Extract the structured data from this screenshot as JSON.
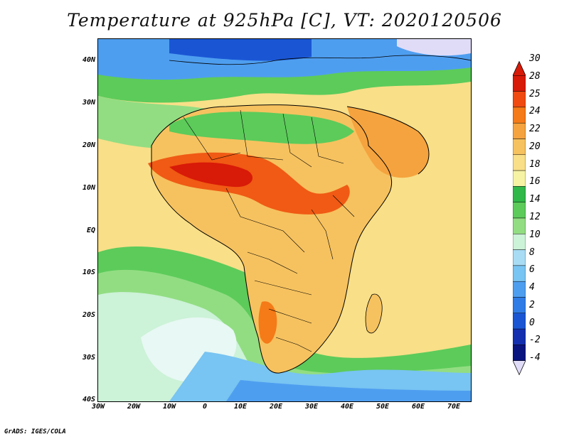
{
  "title": "Temperature at 925hPa [C], VT: 2020120506",
  "credit": "GrADS: IGES/COLA",
  "map": {
    "region": "Africa",
    "lat_ticks": [
      "40N",
      "30N",
      "20N",
      "10N",
      "EQ",
      "10S",
      "20S",
      "30S",
      "40S"
    ],
    "lon_ticks": [
      "30W",
      "20W",
      "10W",
      "0",
      "10E",
      "20E",
      "30E",
      "40E",
      "50E",
      "60E",
      "70E"
    ],
    "lat_range": [
      -40,
      45
    ],
    "lon_range": [
      -30,
      75
    ]
  },
  "colorbar": {
    "labels": [
      "30",
      "28",
      "25",
      "24",
      "22",
      "20",
      "18",
      "16",
      "14",
      "12",
      "10",
      "8",
      "6",
      "4",
      "2",
      "0",
      "-2",
      "-4"
    ],
    "colors": [
      "#d81a08",
      "#f04a10",
      "#f57a18",
      "#f5a33e",
      "#f6c25f",
      "#f8df88",
      "#f6f4a4",
      "#30b848",
      "#5ccb5a",
      "#92dd82",
      "#ccf2d8",
      "#a8dcf4",
      "#78c4f2",
      "#4e9ef0",
      "#2f7ce6",
      "#1a56d4",
      "#1430b0",
      "#0a1480"
    ],
    "top_color": "#d81a08",
    "bottom_color": "#e0dcf8"
  }
}
